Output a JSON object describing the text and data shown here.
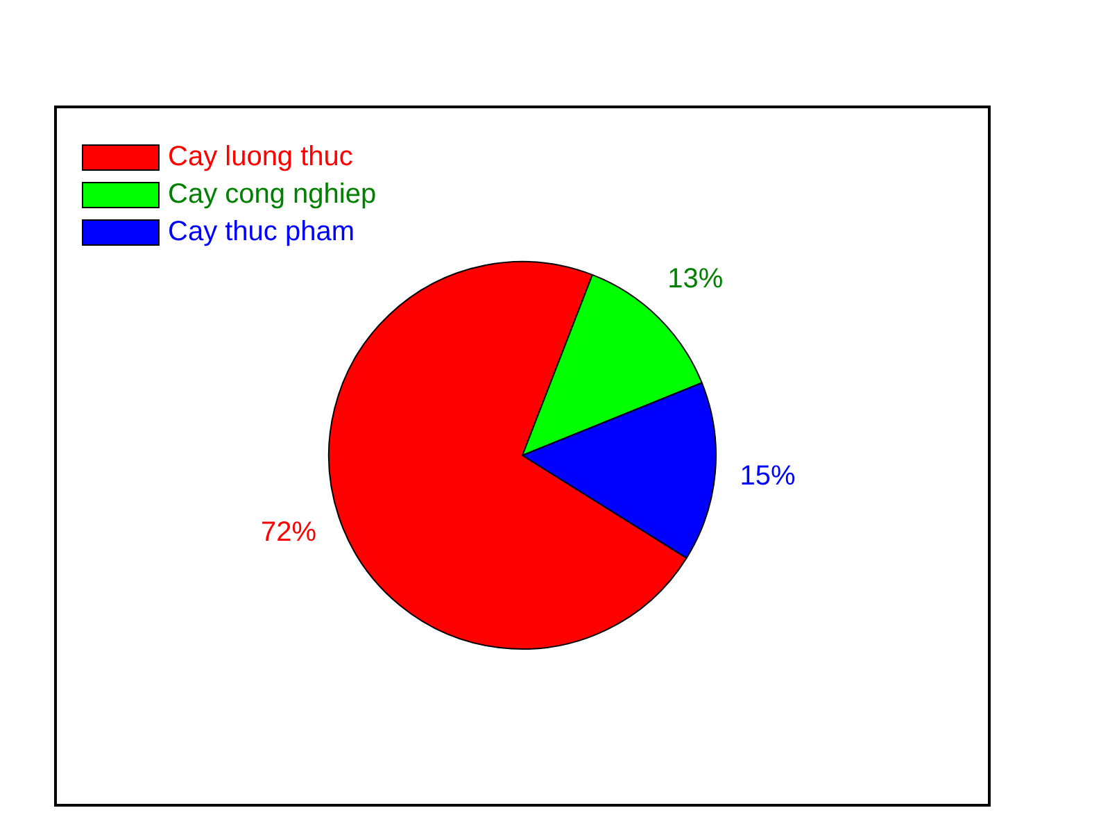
{
  "chart_data": {
    "type": "pie",
    "categories": [
      "Cay luong thuc",
      "Cay cong nghiep",
      "Cay thuc pham"
    ],
    "values": [
      72,
      13,
      15
    ],
    "colors": [
      "#ff0000",
      "#00ff00",
      "#0000ff"
    ],
    "value_labels": [
      "72%",
      "13%",
      "15%"
    ],
    "legend": "top left"
  }
}
